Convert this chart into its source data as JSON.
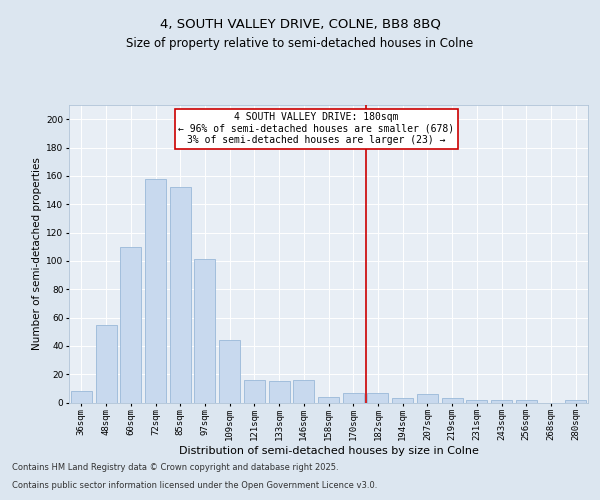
{
  "title1": "4, SOUTH VALLEY DRIVE, COLNE, BB8 8BQ",
  "title2": "Size of property relative to semi-detached houses in Colne",
  "xlabel": "Distribution of semi-detached houses by size in Colne",
  "ylabel": "Number of semi-detached properties",
  "categories": [
    "36sqm",
    "48sqm",
    "60sqm",
    "72sqm",
    "85sqm",
    "97sqm",
    "109sqm",
    "121sqm",
    "133sqm",
    "146sqm",
    "158sqm",
    "170sqm",
    "182sqm",
    "194sqm",
    "207sqm",
    "219sqm",
    "231sqm",
    "243sqm",
    "256sqm",
    "268sqm",
    "280sqm"
  ],
  "values": [
    8,
    55,
    110,
    158,
    152,
    101,
    44,
    16,
    15,
    16,
    4,
    7,
    7,
    3,
    6,
    3,
    2,
    2,
    2,
    0,
    2
  ],
  "bar_color": "#c8d9ee",
  "bar_edge_color": "#9ab8d8",
  "vline_index": 12,
  "vline_color": "#cc0000",
  "annotation_line1": "4 SOUTH VALLEY DRIVE: 180sqm",
  "annotation_line2": "← 96% of semi-detached houses are smaller (678)",
  "annotation_line3": "3% of semi-detached houses are larger (23) →",
  "annotation_box_color": "#cc0000",
  "ylim": [
    0,
    210
  ],
  "yticks": [
    0,
    20,
    40,
    60,
    80,
    100,
    120,
    140,
    160,
    180,
    200
  ],
  "footer1": "Contains HM Land Registry data © Crown copyright and database right 2025.",
  "footer2": "Contains public sector information licensed under the Open Government Licence v3.0.",
  "bg_color": "#dce6f0",
  "plot_bg_color": "#e8eef5",
  "title1_fontsize": 9.5,
  "title2_fontsize": 8.5,
  "xlabel_fontsize": 8,
  "ylabel_fontsize": 7.5,
  "tick_fontsize": 6.5,
  "annotation_fontsize": 7,
  "footer_fontsize": 6
}
